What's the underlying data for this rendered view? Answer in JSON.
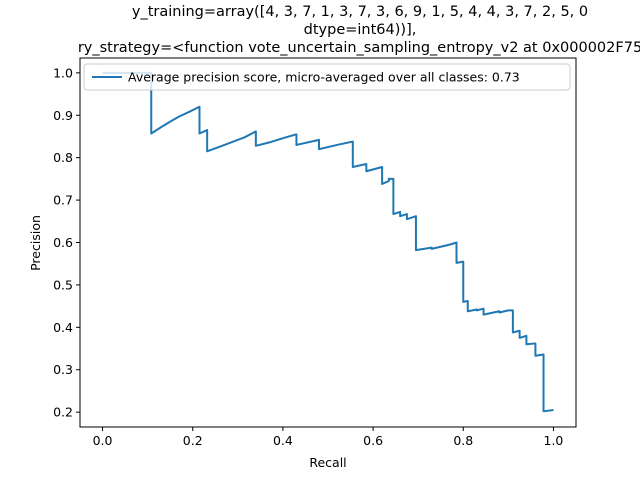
{
  "chart_data": {
    "type": "line",
    "title_lines": [
      "y_training=array([4, 3, 7, 1, 3, 7, 3, 6, 9, 1, 5, 4, 4, 3, 7, 2, 5, 0",
      "dtype=int64))],",
      "ry_strategy=<function vote_uncertain_sampling_entropy_v2 at 0x000002F75"
    ],
    "xlabel": "Recall",
    "ylabel": "Precision",
    "xlim": [
      -0.05,
      1.05
    ],
    "ylim": [
      0.165,
      1.035
    ],
    "xticks": [
      0.0,
      0.2,
      0.4,
      0.6,
      0.8,
      1.0
    ],
    "xtick_labels": [
      "0.0",
      "0.2",
      "0.4",
      "0.6",
      "0.8",
      "1.0"
    ],
    "yticks": [
      0.2,
      0.3,
      0.4,
      0.5,
      0.6,
      0.7,
      0.8,
      0.9,
      1.0
    ],
    "ytick_labels": [
      "0.2",
      "0.3",
      "0.4",
      "0.5",
      "0.6",
      "0.7",
      "0.8",
      "0.9",
      "1.0"
    ],
    "grid": false,
    "legend_position": "top-left",
    "series": [
      {
        "name": "Average precision score, micro-averaged over all classes: 0.73",
        "color": "#1f77b4",
        "points": [
          [
            0.0,
            1.0
          ],
          [
            0.108,
            1.0
          ],
          [
            0.108,
            0.857
          ],
          [
            0.13,
            0.872
          ],
          [
            0.15,
            0.885
          ],
          [
            0.17,
            0.897
          ],
          [
            0.19,
            0.907
          ],
          [
            0.215,
            0.92
          ],
          [
            0.215,
            0.857
          ],
          [
            0.232,
            0.865
          ],
          [
            0.232,
            0.815
          ],
          [
            0.26,
            0.826
          ],
          [
            0.29,
            0.838
          ],
          [
            0.315,
            0.848
          ],
          [
            0.34,
            0.862
          ],
          [
            0.34,
            0.828
          ],
          [
            0.37,
            0.836
          ],
          [
            0.4,
            0.846
          ],
          [
            0.43,
            0.855
          ],
          [
            0.43,
            0.83
          ],
          [
            0.48,
            0.842
          ],
          [
            0.48,
            0.82
          ],
          [
            0.52,
            0.83
          ],
          [
            0.555,
            0.838
          ],
          [
            0.555,
            0.778
          ],
          [
            0.585,
            0.785
          ],
          [
            0.585,
            0.768
          ],
          [
            0.62,
            0.778
          ],
          [
            0.62,
            0.738
          ],
          [
            0.635,
            0.745
          ],
          [
            0.635,
            0.75
          ],
          [
            0.645,
            0.75
          ],
          [
            0.645,
            0.667
          ],
          [
            0.66,
            0.672
          ],
          [
            0.66,
            0.662
          ],
          [
            0.675,
            0.667
          ],
          [
            0.675,
            0.655
          ],
          [
            0.695,
            0.662
          ],
          [
            0.695,
            0.582
          ],
          [
            0.73,
            0.588
          ],
          [
            0.73,
            0.585
          ],
          [
            0.77,
            0.595
          ],
          [
            0.785,
            0.6
          ],
          [
            0.785,
            0.552
          ],
          [
            0.8,
            0.555
          ],
          [
            0.8,
            0.46
          ],
          [
            0.81,
            0.462
          ],
          [
            0.81,
            0.438
          ],
          [
            0.83,
            0.442
          ],
          [
            0.83,
            0.44
          ],
          [
            0.845,
            0.444
          ],
          [
            0.845,
            0.43
          ],
          [
            0.88,
            0.438
          ],
          [
            0.88,
            0.435
          ],
          [
            0.9,
            0.44
          ],
          [
            0.91,
            0.44
          ],
          [
            0.91,
            0.388
          ],
          [
            0.925,
            0.392
          ],
          [
            0.925,
            0.375
          ],
          [
            0.94,
            0.38
          ],
          [
            0.94,
            0.36
          ],
          [
            0.96,
            0.362
          ],
          [
            0.96,
            0.333
          ],
          [
            0.978,
            0.336
          ],
          [
            0.978,
            0.202
          ],
          [
            1.0,
            0.205
          ]
        ]
      }
    ]
  }
}
